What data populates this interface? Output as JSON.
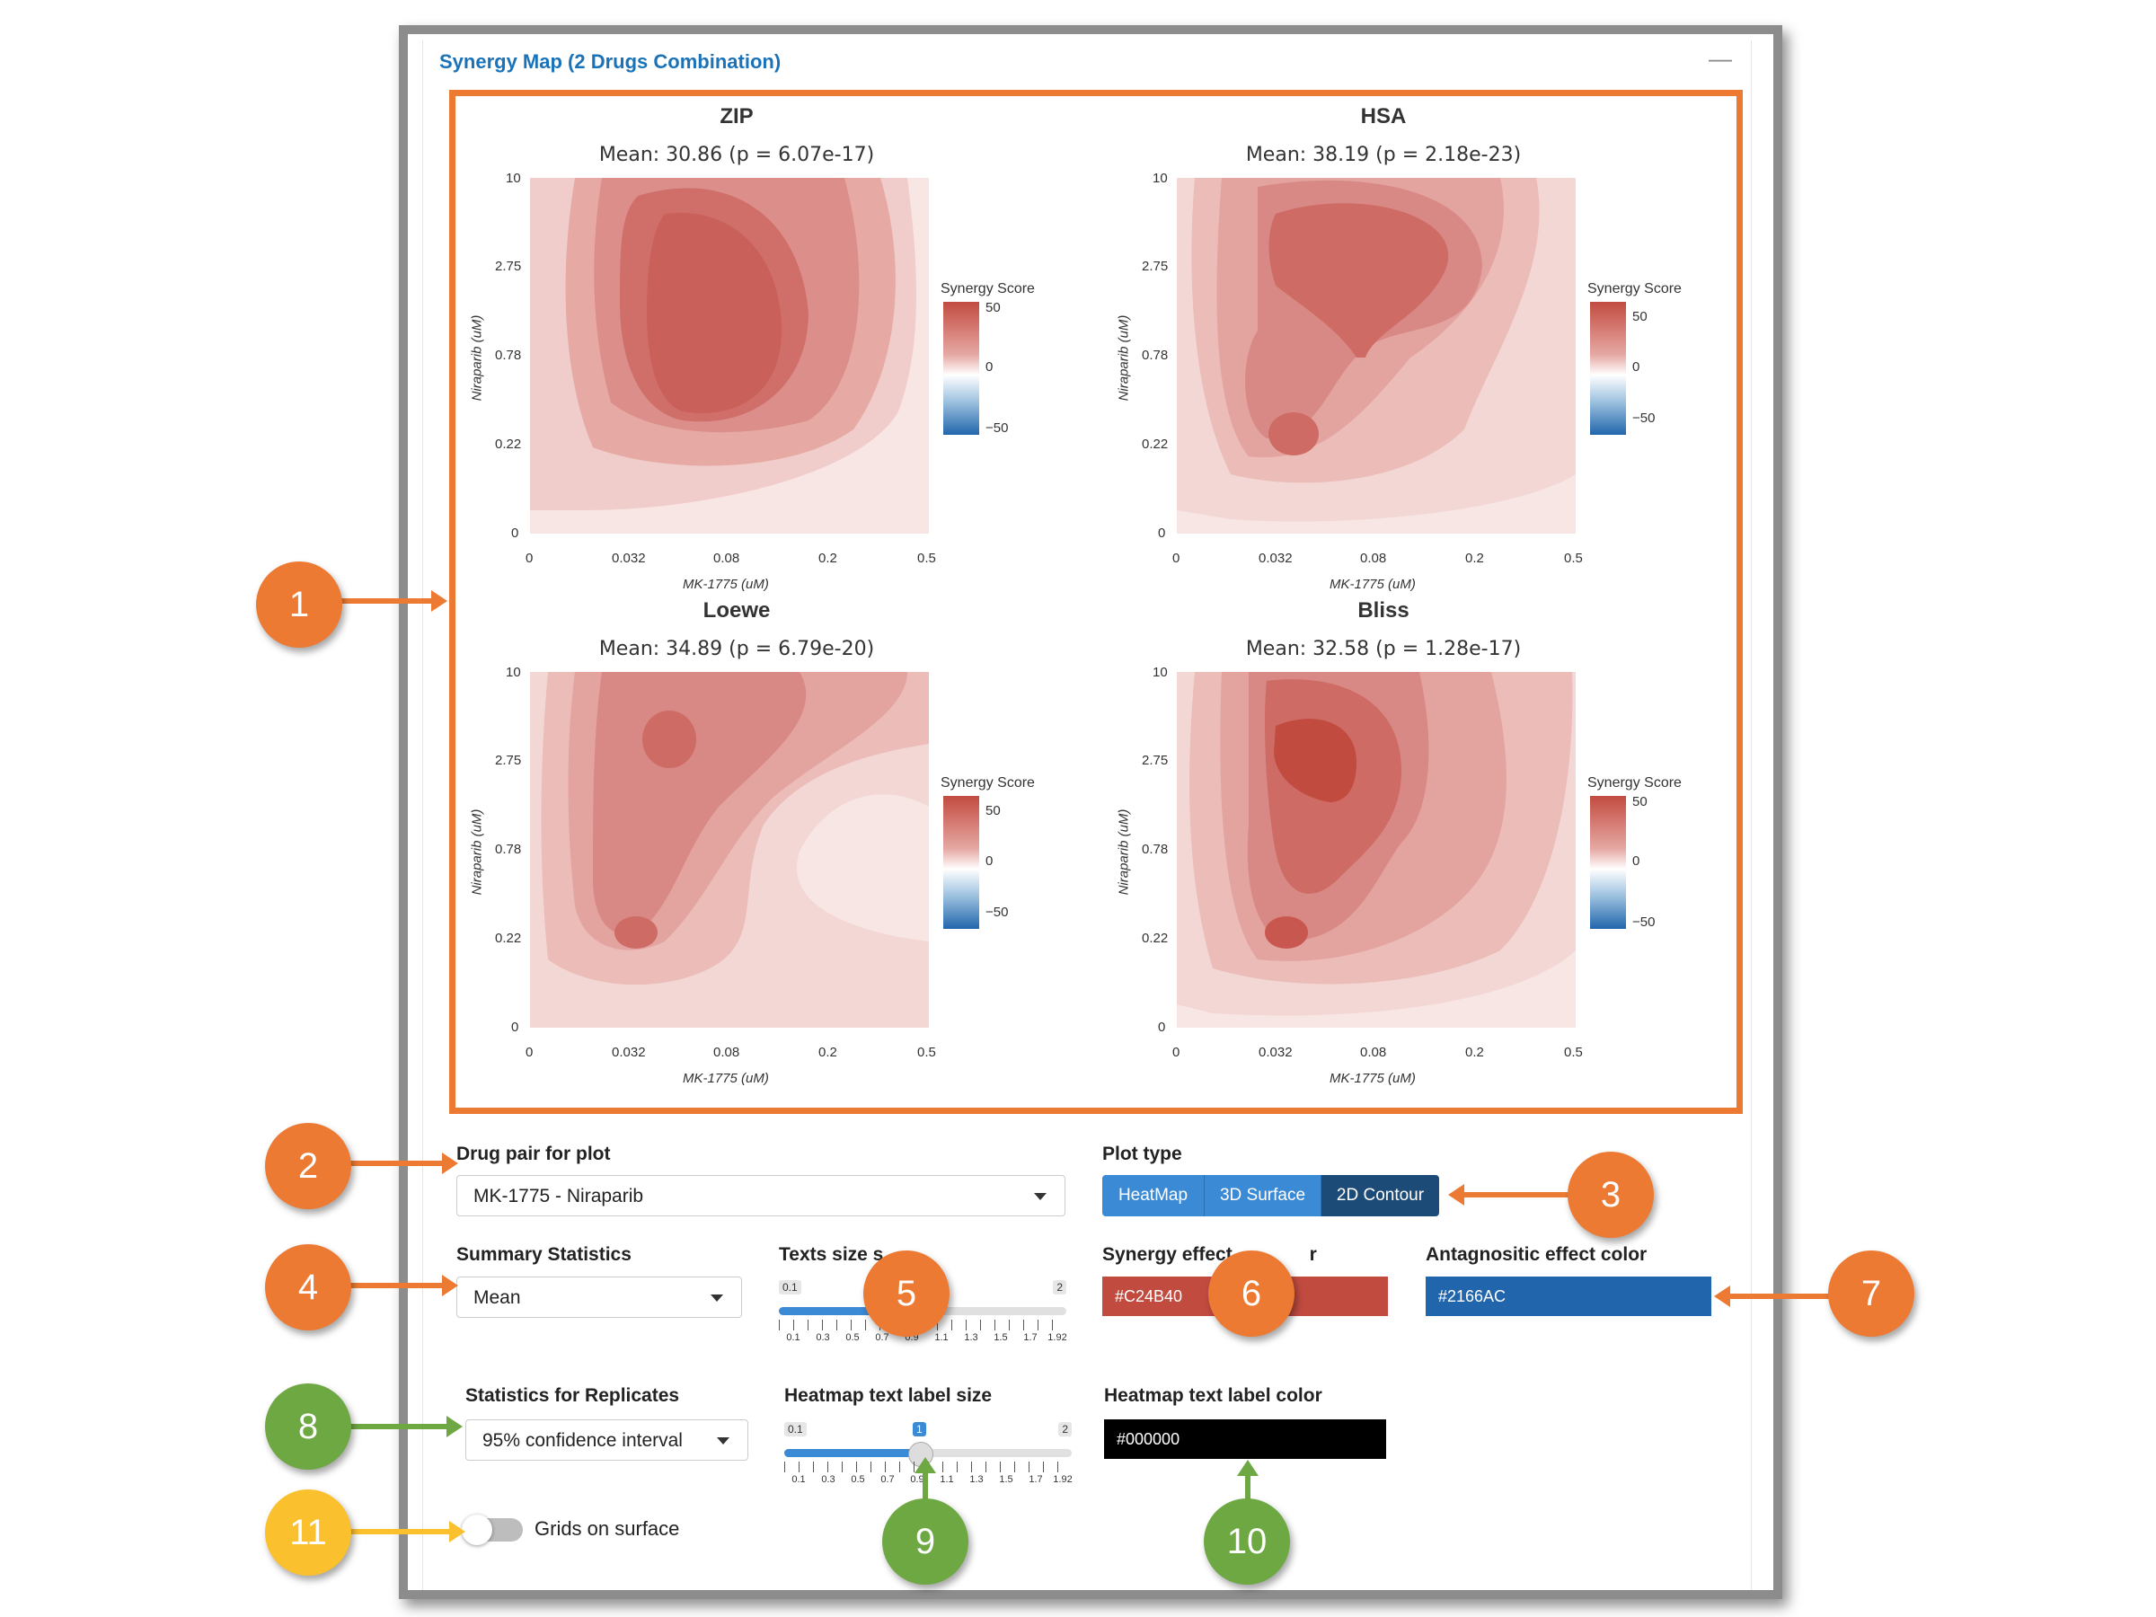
{
  "box": {
    "title": "Synergy Map (2 Drugs Combination)",
    "collapse_icon": "minus-icon"
  },
  "plots": [
    {
      "title": "ZIP",
      "subtitle": "Mean: 30.86 (p = 6.07e-17)"
    },
    {
      "title": "HSA",
      "subtitle": "Mean: 38.19 (p = 2.18e-23)"
    },
    {
      "title": "Loewe",
      "subtitle": "Mean: 34.89 (p = 6.79e-20)"
    },
    {
      "title": "Bliss",
      "subtitle": "Mean: 32.58 (p = 1.28e-17)"
    }
  ],
  "axes": {
    "x_title": "MK-1775 (uM)",
    "y_title": "Niraparib (uM)",
    "x_ticks": [
      "0",
      "0.032",
      "0.08",
      "0.2",
      "0.5"
    ],
    "y_ticks": [
      "10",
      "2.75",
      "0.78",
      "0.22",
      "0"
    ]
  },
  "legend": {
    "title": "Synergy Score",
    "ticks": [
      "50",
      "0",
      "−50"
    ]
  },
  "controls": {
    "drug_pair_label": "Drug pair for plot",
    "drug_pair_value": "MK-1775 - Niraparib",
    "plot_type_label": "Plot type",
    "plot_types": [
      "HeatMap",
      "3D Surface",
      "2D Contour"
    ],
    "plot_type_selected": "2D Contour",
    "summary_label": "Summary Statistics",
    "summary_value": "Mean",
    "text_size_label": "Texts size s",
    "text_size": {
      "min": "0.1",
      "max": "2",
      "value": 1,
      "ticks": [
        "0.1",
        "0.3",
        "0.5",
        "0.7",
        "0.9",
        "1.1",
        "1.3",
        "1.5",
        "1.7",
        "1.92"
      ]
    },
    "synergy_color_label": "Synergy effect",
    "synergy_color_suffix": "r",
    "synergy_color": "#C24B40",
    "antagonistic_color_label": "Antagnositic effect color",
    "antagonistic_color": "#2166AC",
    "replicates_label": "Statistics for Replicates",
    "replicates_value": "95% confidence interval",
    "heatmap_label_size_label": "Heatmap text label size",
    "heatmap_label_size": {
      "min": "0.1",
      "max": "2",
      "value": "1",
      "ticks": [
        "0.1",
        "0.3",
        "0.5",
        "0.7",
        "0.9",
        "1.1",
        "1.3",
        "1.5",
        "1.7",
        "1.92"
      ]
    },
    "heatmap_label_color_label": "Heatmap text label color",
    "heatmap_label_color": "#000000",
    "grids_label": "Grids on surface"
  },
  "markers": [
    "1",
    "2",
    "3",
    "4",
    "5",
    "6",
    "7",
    "8",
    "9",
    "10",
    "11"
  ],
  "colors": {
    "orange": "#ec7a33",
    "green": "#6ea843",
    "yellow": "#fbc02d",
    "accent": "#1a73b8"
  }
}
